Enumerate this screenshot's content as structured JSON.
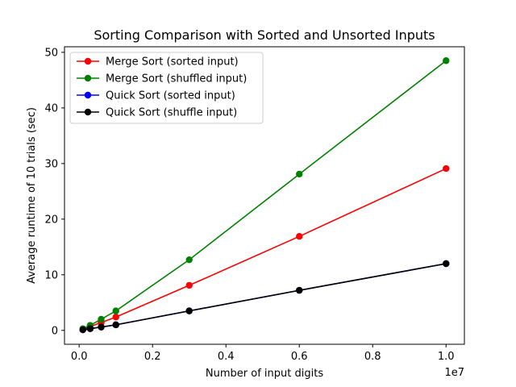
{
  "chart_data": {
    "type": "line",
    "title": "Sorting Comparison with Sorted and Unsorted Inputs",
    "xlabel": "Number of input digits",
    "ylabel": "Average runtime of 10 trials (sec)",
    "x_offset_text": "1e7",
    "x_scale": 10000000,
    "xlim": [
      -400000,
      10500000
    ],
    "ylim": [
      -2.5,
      51
    ],
    "x_ticks": [
      0,
      2000000,
      4000000,
      6000000,
      8000000,
      10000000
    ],
    "x_tick_labels": [
      "0.0",
      "0.2",
      "0.4",
      "0.6",
      "0.8",
      "1.0"
    ],
    "y_ticks": [
      0,
      10,
      20,
      30,
      40,
      50
    ],
    "y_tick_labels": [
      "0",
      "10",
      "20",
      "30",
      "40",
      "50"
    ],
    "grid": false,
    "legend_position": "top-left",
    "x": [
      100000,
      300000,
      600000,
      1000000,
      3000000,
      6000000,
      10000000
    ],
    "series": [
      {
        "name": "Merge Sort (sorted input)",
        "color": "#ff0000",
        "values": [
          0.2,
          0.7,
          1.4,
          2.4,
          8.1,
          16.9,
          29.1
        ]
      },
      {
        "name": "Merge Sort (shuffled input)",
        "color": "#008000",
        "values": [
          0.3,
          0.9,
          2.0,
          3.5,
          12.7,
          28.1,
          48.5
        ]
      },
      {
        "name": "Quick Sort (sorted input)",
        "color": "#0000ff",
        "values": [
          0.1,
          0.3,
          0.6,
          1.0,
          3.5,
          7.2,
          12.0
        ]
      },
      {
        "name": "Quick Sort (shuffle input)",
        "color": "#000000",
        "values": [
          0.1,
          0.3,
          0.6,
          1.0,
          3.5,
          7.2,
          12.0
        ]
      }
    ]
  }
}
